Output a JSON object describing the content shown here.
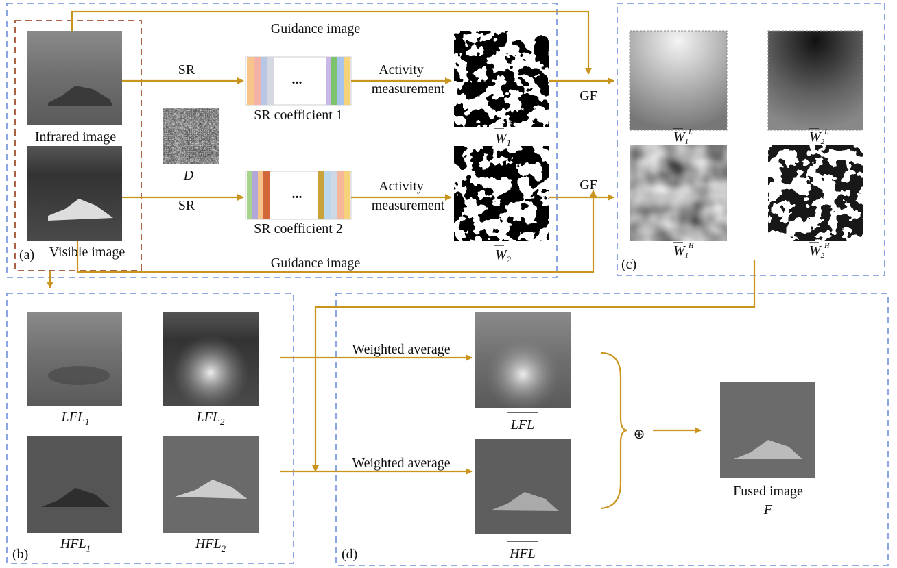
{
  "panel_a": {
    "label": "(a)",
    "top_guidance": "Guidance image",
    "bottom_guidance": "Guidance image",
    "infrared": "Infrared image",
    "visible": "Visible image",
    "sr_top": "SR",
    "sr_bottom": "SR",
    "dictionary": "D",
    "coef1": "SR coefficient 1",
    "coef2": "SR coefficient 2",
    "ellipsis1": "...",
    "ellipsis2": "...",
    "activity_top": [
      "Activity",
      "measurement"
    ],
    "activity_bottom": [
      "Activity",
      "measurement"
    ],
    "w1": {
      "base": "W",
      "sub": "1"
    },
    "w2": {
      "base": "W",
      "sub": "2"
    },
    "gf_top": "GF",
    "gf_bottom": "GF"
  },
  "panel_c": {
    "label": "(c)",
    "w1l": {
      "base": "W",
      "sub": "1",
      "sup": "L"
    },
    "w2l": {
      "base": "W",
      "sub": "2",
      "sup": "L"
    },
    "w1h": {
      "base": "W",
      "sub": "1",
      "sup": "H"
    },
    "w2h": {
      "base": "W",
      "sub": "2",
      "sup": "H"
    }
  },
  "panel_b": {
    "label": "(b)",
    "lfl1": {
      "base": "LFL",
      "sub": "1"
    },
    "lfl2": {
      "base": "LFL",
      "sub": "2"
    },
    "hfl1": {
      "base": "HFL",
      "sub": "1"
    },
    "hfl2": {
      "base": "HFL",
      "sub": "2"
    }
  },
  "panel_d": {
    "label": "(d)",
    "weighted_top": "Weighted average",
    "weighted_bottom": "Weighted average",
    "lfl": "LFL",
    "hfl": "HFL",
    "plus": "⊕",
    "fused": "Fused image",
    "fused_symbol": "F"
  }
}
